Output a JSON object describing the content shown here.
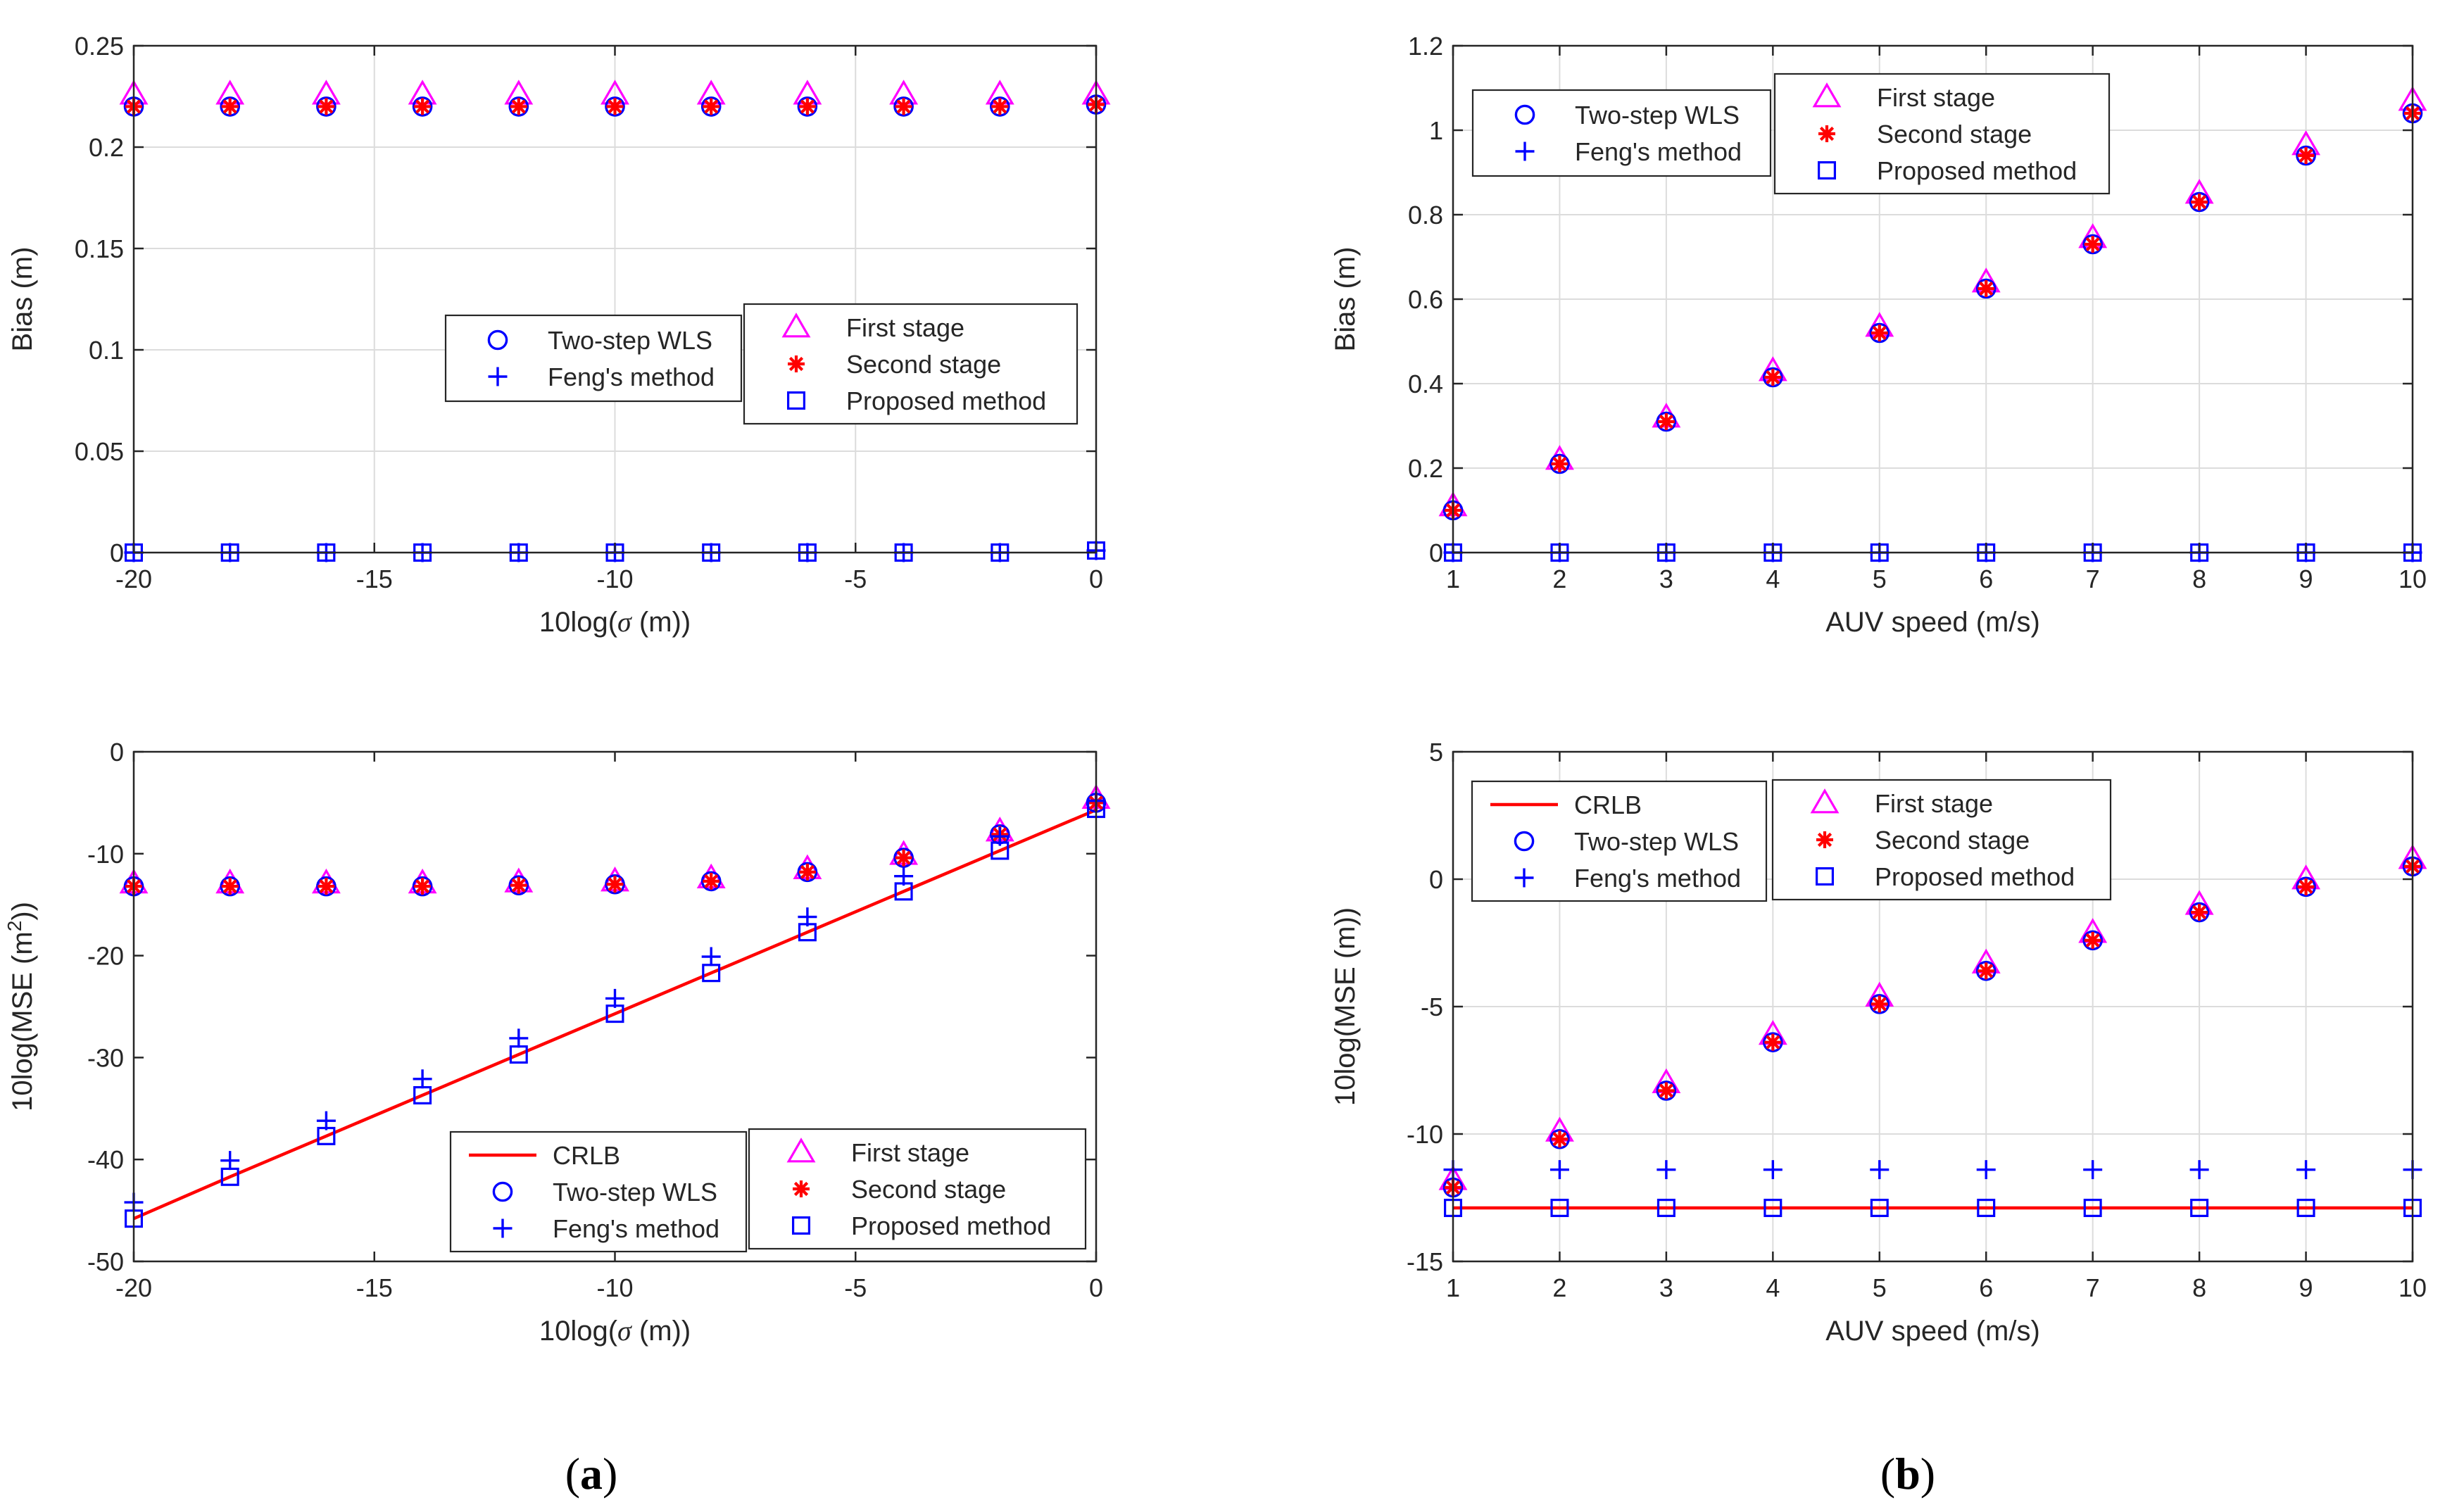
{
  "series_styles": {
    "first_stage": {
      "marker": "triangle",
      "color": "#ff00ff"
    },
    "second_stage": {
      "marker": "asterisk",
      "color": "#ff0000"
    },
    "two_step_wls": {
      "marker": "circle",
      "color": "#0000ff"
    },
    "fengs_method": {
      "marker": "plus",
      "color": "#0000ff"
    },
    "proposed_method": {
      "marker": "square",
      "color": "#0000ff"
    },
    "crlb": {
      "marker": "line",
      "color": "#ff0000"
    }
  },
  "captions": {
    "a": "(a)",
    "b": "(b)"
  },
  "chart_data": [
    {
      "id": "a-top",
      "type": "scatter",
      "xlabel": "10log(σ (m))",
      "ylabel": "Bias (m)",
      "xlim": [
        -20,
        0
      ],
      "ylim": [
        0,
        0.25
      ],
      "xticks": [
        -20,
        -15,
        -10,
        -5,
        0
      ],
      "yticks": [
        0,
        0.05,
        0.1,
        0.15,
        0.2,
        0.25
      ],
      "grid": true,
      "x": [
        -20,
        -18,
        -16,
        -14,
        -12,
        -10,
        -8,
        -6,
        -4,
        -2,
        0
      ],
      "legends": [
        {
          "position": "middle-right-left",
          "entries": [
            "Two-step WLS",
            "Feng's method"
          ]
        },
        {
          "position": "middle-right",
          "entries": [
            "First stage",
            "Second stage",
            "Proposed method"
          ]
        }
      ],
      "series": [
        {
          "name": "First stage",
          "style": "first_stage",
          "values": [
            0.226,
            0.226,
            0.226,
            0.226,
            0.226,
            0.226,
            0.226,
            0.226,
            0.226,
            0.226,
            0.226
          ]
        },
        {
          "name": "Two-step WLS",
          "style": "two_step_wls",
          "values": [
            0.22,
            0.22,
            0.22,
            0.22,
            0.22,
            0.22,
            0.22,
            0.22,
            0.22,
            0.22,
            0.221
          ]
        },
        {
          "name": "Second stage",
          "style": "second_stage",
          "values": [
            0.22,
            0.22,
            0.22,
            0.22,
            0.22,
            0.22,
            0.22,
            0.22,
            0.22,
            0.22,
            0.221
          ]
        },
        {
          "name": "Feng's method",
          "style": "fengs_method",
          "values": [
            0,
            0,
            0,
            0,
            0,
            0,
            0,
            0,
            0,
            0,
            0.001
          ]
        },
        {
          "name": "Proposed method",
          "style": "proposed_method",
          "values": [
            0,
            0,
            0,
            0,
            0,
            0,
            0,
            0,
            0,
            0,
            0.001
          ]
        }
      ]
    },
    {
      "id": "b-top",
      "type": "scatter",
      "xlabel": "AUV speed (m/s)",
      "ylabel": "Bias (m)",
      "xlim": [
        1,
        10
      ],
      "ylim": [
        0,
        1.2
      ],
      "xticks": [
        1,
        2,
        3,
        4,
        5,
        6,
        7,
        8,
        9,
        10
      ],
      "yticks": [
        0,
        0.2,
        0.4,
        0.6,
        0.8,
        1,
        1.2
      ],
      "grid": true,
      "x": [
        1,
        2,
        3,
        4,
        5,
        6,
        7,
        8,
        9,
        10
      ],
      "legends": [
        {
          "position": "top-left",
          "entries": [
            "Two-step WLS",
            "Feng's method"
          ]
        },
        {
          "position": "top-center",
          "entries": [
            "First stage",
            "Second stage",
            "Proposed method"
          ]
        }
      ],
      "series": [
        {
          "name": "First stage",
          "style": "first_stage",
          "values": [
            0.11,
            0.22,
            0.32,
            0.43,
            0.535,
            0.64,
            0.745,
            0.85,
            0.965,
            1.07
          ]
        },
        {
          "name": "Two-step WLS",
          "style": "two_step_wls",
          "values": [
            0.1,
            0.21,
            0.31,
            0.415,
            0.52,
            0.625,
            0.73,
            0.83,
            0.94,
            1.04
          ]
        },
        {
          "name": "Second stage",
          "style": "second_stage",
          "values": [
            0.1,
            0.21,
            0.31,
            0.415,
            0.52,
            0.625,
            0.73,
            0.83,
            0.94,
            1.04
          ]
        },
        {
          "name": "Feng's method",
          "style": "fengs_method",
          "values": [
            0,
            0,
            0,
            0,
            0,
            0,
            0,
            0,
            0,
            0
          ]
        },
        {
          "name": "Proposed method",
          "style": "proposed_method",
          "values": [
            0,
            0,
            0,
            0,
            0,
            0,
            0,
            0,
            0,
            0
          ]
        }
      ]
    },
    {
      "id": "a-bottom",
      "type": "scatter",
      "xlabel": "10log(σ (m))",
      "ylabel": "10log(MSE (m",
      "ylabel_sup": "2",
      "ylabel_end": "))",
      "xlim": [
        -20,
        0
      ],
      "ylim": [
        -50,
        0
      ],
      "xticks": [
        -20,
        -15,
        -10,
        -5,
        0
      ],
      "yticks": [
        -50,
        -40,
        -30,
        -20,
        -10,
        0
      ],
      "grid": false,
      "x": [
        -20,
        -18,
        -16,
        -14,
        -12,
        -10,
        -8,
        -6,
        -4,
        -2,
        0
      ],
      "legends": [
        {
          "position": "bottom-center",
          "entries": [
            "CRLB",
            "Two-step WLS",
            "Feng's method"
          ]
        },
        {
          "position": "bottom-right",
          "entries": [
            "First stage",
            "Second stage",
            "Proposed method"
          ]
        }
      ],
      "series": [
        {
          "name": "CRLB",
          "style": "crlb",
          "values": [
            -45.8,
            -41.7,
            -37.7,
            -33.7,
            -29.7,
            -25.7,
            -21.7,
            -17.7,
            -13.7,
            -9.7,
            -5.7
          ]
        },
        {
          "name": "First stage",
          "style": "first_stage",
          "values": [
            -12.9,
            -12.9,
            -12.9,
            -12.9,
            -12.8,
            -12.7,
            -12.4,
            -11.5,
            -10.1,
            -7.8,
            -4.6
          ]
        },
        {
          "name": "Two-step WLS",
          "style": "two_step_wls",
          "values": [
            -13.2,
            -13.2,
            -13.2,
            -13.2,
            -13.1,
            -13.0,
            -12.7,
            -11.8,
            -10.4,
            -8.1,
            -5.0
          ]
        },
        {
          "name": "Second stage",
          "style": "second_stage",
          "values": [
            -13.2,
            -13.2,
            -13.2,
            -13.2,
            -13.1,
            -13.0,
            -12.7,
            -11.8,
            -10.4,
            -8.1,
            -5.0
          ]
        },
        {
          "name": "Feng's method",
          "style": "fengs_method",
          "values": [
            -44.2,
            -40.1,
            -36.2,
            -32.1,
            -28.1,
            -24.2,
            -20.1,
            -16.2,
            -12.2,
            -8.3,
            -4.8
          ]
        },
        {
          "name": "Proposed method",
          "style": "proposed_method",
          "values": [
            -45.8,
            -41.7,
            -37.7,
            -33.7,
            -29.7,
            -25.7,
            -21.7,
            -17.7,
            -13.7,
            -9.7,
            -5.6
          ]
        }
      ]
    },
    {
      "id": "b-bottom",
      "type": "scatter",
      "xlabel": "AUV speed (m/s)",
      "ylabel": "10log(MSE (m))",
      "xlim": [
        1,
        10
      ],
      "ylim": [
        -15,
        5
      ],
      "xticks": [
        1,
        2,
        3,
        4,
        5,
        6,
        7,
        8,
        9,
        10
      ],
      "yticks": [
        -15,
        -10,
        -5,
        0,
        5
      ],
      "grid": true,
      "x": [
        1,
        2,
        3,
        4,
        5,
        6,
        7,
        8,
        9,
        10
      ],
      "legends": [
        {
          "position": "top-left",
          "entries": [
            "CRLB",
            "Two-step WLS",
            "Feng's method"
          ]
        },
        {
          "position": "top-center",
          "entries": [
            "First stage",
            "Second stage",
            "Proposed method"
          ]
        }
      ],
      "series": [
        {
          "name": "CRLB",
          "style": "crlb",
          "values": [
            -12.9,
            -12.9,
            -12.9,
            -12.9,
            -12.9,
            -12.9,
            -12.9,
            -12.9,
            -12.9,
            -12.9
          ]
        },
        {
          "name": "First stage",
          "style": "first_stage",
          "values": [
            -11.8,
            -9.9,
            -8.0,
            -6.1,
            -4.6,
            -3.3,
            -2.1,
            -1.0,
            0.0,
            0.8
          ]
        },
        {
          "name": "Two-step WLS",
          "style": "two_step_wls",
          "values": [
            -12.1,
            -10.2,
            -8.3,
            -6.4,
            -4.9,
            -3.6,
            -2.4,
            -1.3,
            -0.3,
            0.5
          ]
        },
        {
          "name": "Second stage",
          "style": "second_stage",
          "values": [
            -12.1,
            -10.2,
            -8.3,
            -6.4,
            -4.9,
            -3.6,
            -2.4,
            -1.3,
            -0.3,
            0.5
          ]
        },
        {
          "name": "Feng's method",
          "style": "fengs_method",
          "values": [
            -11.4,
            -11.4,
            -11.4,
            -11.4,
            -11.4,
            -11.4,
            -11.4,
            -11.4,
            -11.4,
            -11.4
          ]
        },
        {
          "name": "Proposed method",
          "style": "proposed_method",
          "values": [
            -12.9,
            -12.9,
            -12.9,
            -12.9,
            -12.9,
            -12.9,
            -12.9,
            -12.9,
            -12.9,
            -12.9
          ]
        }
      ]
    }
  ]
}
